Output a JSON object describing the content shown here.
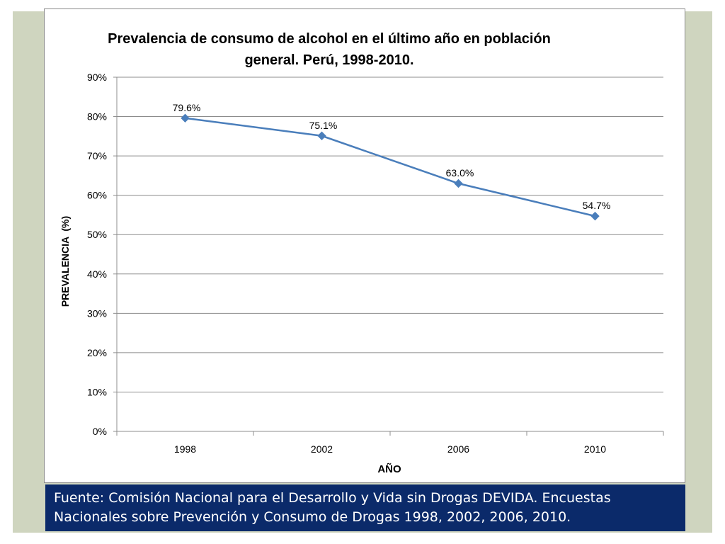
{
  "chart_data": {
    "type": "line",
    "title": "Prevalencia de consumo de alcohol en el último año en población general. Perú, 1998-2010.",
    "title_lines": [
      "Prevalencia de consumo de alcohol en el último año en población",
      "general. Perú, 1998-2010."
    ],
    "xlabel": "AÑO",
    "ylabel": "PREVALENCIA  (%)",
    "categories": [
      "1998",
      "2002",
      "2006",
      "2010"
    ],
    "series": [
      {
        "values": [
          79.6,
          75.1,
          63.0,
          54.7
        ],
        "labels": [
          "79.6%",
          "75.1%",
          "63.0%",
          "54.7%"
        ],
        "color": "#4a7ebb",
        "marker": "diamond"
      }
    ],
    "ylim": [
      0,
      90
    ],
    "yticks": [
      0,
      10,
      20,
      30,
      40,
      50,
      60,
      70,
      80,
      90
    ],
    "ytick_labels": [
      "0%",
      "10%",
      "20%",
      "30%",
      "40%",
      "50%",
      "60%",
      "70%",
      "80%",
      "90%"
    ],
    "grid": true,
    "legend": "none"
  },
  "source": {
    "text": "Fuente: Comisión Nacional para el Desarrollo y Vida sin Drogas DEVIDA. Encuestas Nacionales sobre Prevención y Consumo de Drogas 1998, 2002, 2006, 2010."
  },
  "colors": {
    "slide_background": "#cfd5bf",
    "source_box": "#0b2a6a",
    "gridline": "#8c8c8c",
    "line": "#4a7ebb"
  }
}
